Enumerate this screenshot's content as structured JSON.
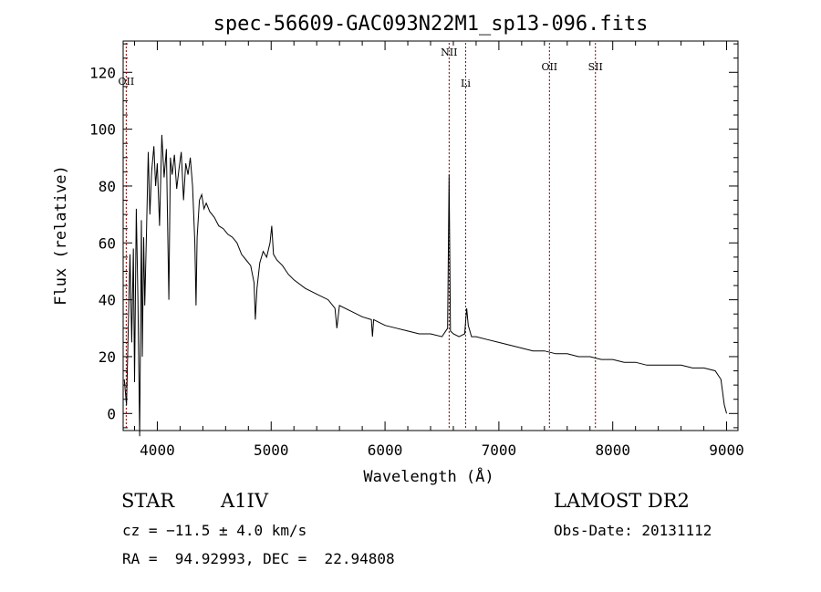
{
  "chart_data": {
    "type": "line",
    "title": "spec-56609-GAC093N22M1_sp13-096.fits",
    "xlabel": "Wavelength (Å)",
    "ylabel": "Flux (relative)",
    "xlim": [
      3700,
      9100
    ],
    "ylim": [
      -6,
      131
    ],
    "x_ticks": [
      4000,
      5000,
      6000,
      7000,
      8000,
      9000
    ],
    "y_ticks": [
      0,
      20,
      40,
      60,
      80,
      100,
      120
    ],
    "grid": false,
    "line_color": "#000000",
    "marker_color": "#8b0000",
    "spectrum": {
      "x": [
        3710,
        3730,
        3745,
        3760,
        3775,
        3790,
        3800,
        3815,
        3830,
        3845,
        3860,
        3868,
        3880,
        3890,
        3905,
        3920,
        3935,
        3950,
        3970,
        3985,
        4000,
        4020,
        4040,
        4060,
        4080,
        4101,
        4115,
        4130,
        4150,
        4170,
        4190,
        4210,
        4230,
        4250,
        4270,
        4290,
        4310,
        4330,
        4340,
        4350,
        4370,
        4390,
        4410,
        4430,
        4460,
        4500,
        4540,
        4580,
        4620,
        4660,
        4700,
        4740,
        4780,
        4820,
        4850,
        4861,
        4875,
        4900,
        4930,
        4960,
        4990,
        5005,
        5020,
        5050,
        5100,
        5150,
        5200,
        5300,
        5400,
        5500,
        5560,
        5577,
        5600,
        5700,
        5800,
        5880,
        5890,
        5900,
        5950,
        6000,
        6100,
        6200,
        6300,
        6400,
        6500,
        6550,
        6563,
        6575,
        6600,
        6650,
        6700,
        6717,
        6731,
        6760,
        6800,
        6900,
        7000,
        7100,
        7200,
        7300,
        7400,
        7500,
        7600,
        7700,
        7800,
        7900,
        8000,
        8100,
        8200,
        8300,
        8400,
        8500,
        8600,
        8700,
        8800,
        8900,
        8950,
        8980,
        9000
      ],
      "y": [
        12,
        3,
        30,
        56,
        25,
        58,
        11,
        72,
        40,
        -8,
        68,
        20,
        62,
        38,
        64,
        92,
        70,
        85,
        94,
        80,
        88,
        66,
        98,
        83,
        93,
        40,
        90,
        84,
        91,
        79,
        86,
        92,
        75,
        88,
        84,
        90,
        80,
        60,
        38,
        62,
        75,
        77,
        72,
        74,
        71,
        69,
        66,
        65,
        63,
        62,
        60,
        56,
        54,
        52,
        46,
        33,
        44,
        53,
        57,
        55,
        60,
        66,
        56,
        54,
        52,
        49,
        47,
        44,
        42,
        40,
        37,
        30,
        38,
        36,
        34,
        33,
        27,
        33,
        32,
        31,
        30,
        29,
        28,
        28,
        27,
        30,
        84,
        29,
        28,
        27,
        28,
        37,
        31,
        27,
        27,
        26,
        25,
        24,
        23,
        22,
        22,
        21,
        21,
        20,
        20,
        19,
        19,
        18,
        18,
        17,
        17,
        17,
        17,
        16,
        16,
        15,
        12,
        3,
        0
      ]
    },
    "lines": [
      {
        "label": "OII",
        "x": 3727
      },
      {
        "label": "NII",
        "x": 6563
      },
      {
        "label": "Li",
        "x": 6708
      },
      {
        "label": "OII",
        "x": 7444
      },
      {
        "label": "SII",
        "x": 7848
      }
    ]
  },
  "info": {
    "object_type": "STAR",
    "subclass": "A1IV",
    "survey": "LAMOST DR2",
    "redshift": "cz = −11.5 ± 4.0 km/s",
    "obs_date": "Obs-Date: 20131112",
    "coords": "RA =  94.92993, DEC =  22.94808"
  }
}
